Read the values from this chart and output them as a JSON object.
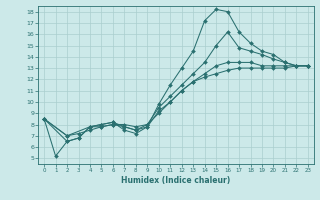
{
  "xlabel": "Humidex (Indice chaleur)",
  "xlim": [
    -0.5,
    23.5
  ],
  "ylim": [
    4.5,
    18.5
  ],
  "xticks": [
    0,
    1,
    2,
    3,
    4,
    5,
    6,
    7,
    8,
    9,
    10,
    11,
    12,
    13,
    14,
    15,
    16,
    17,
    18,
    19,
    20,
    21,
    22,
    23
  ],
  "yticks": [
    5,
    6,
    7,
    8,
    9,
    10,
    11,
    12,
    13,
    14,
    15,
    16,
    17,
    18
  ],
  "bg_color": "#cce9e9",
  "grid_color": "#aacece",
  "line_color": "#2a7070",
  "lines": [
    {
      "x": [
        0,
        1,
        2,
        3,
        4,
        5,
        6,
        7,
        8,
        9,
        10,
        11,
        12,
        13,
        14,
        15,
        16,
        17,
        18,
        19,
        20,
        21,
        22,
        23
      ],
      "y": [
        8.5,
        5.2,
        6.5,
        6.8,
        7.8,
        8.0,
        8.2,
        7.5,
        7.2,
        7.8,
        9.8,
        11.5,
        13.0,
        14.5,
        17.2,
        18.2,
        18.0,
        16.2,
        15.2,
        14.5,
        14.2,
        13.5,
        13.2,
        13.2
      ],
      "marker": "D",
      "markersize": 2.0
    },
    {
      "x": [
        0,
        2,
        3,
        4,
        5,
        6,
        7,
        8,
        9,
        10,
        11,
        12,
        13,
        14,
        15,
        16,
        17,
        18,
        19,
        20,
        21,
        22,
        23
      ],
      "y": [
        8.5,
        6.5,
        6.8,
        7.8,
        8.0,
        8.2,
        7.8,
        7.5,
        8.0,
        9.5,
        10.5,
        11.5,
        12.5,
        13.5,
        15.0,
        16.2,
        14.8,
        14.5,
        14.2,
        13.8,
        13.5,
        13.2,
        13.2
      ],
      "marker": "D",
      "markersize": 2.0
    },
    {
      "x": [
        0,
        2,
        3,
        4,
        5,
        6,
        7,
        8,
        9,
        10,
        11,
        12,
        13,
        14,
        15,
        16,
        17,
        18,
        19,
        20,
        21,
        22,
        23
      ],
      "y": [
        8.5,
        7.0,
        7.2,
        7.5,
        7.8,
        8.0,
        8.0,
        7.8,
        8.0,
        9.0,
        10.0,
        11.0,
        11.8,
        12.5,
        13.2,
        13.5,
        13.5,
        13.5,
        13.2,
        13.2,
        13.2,
        13.2,
        13.2
      ],
      "marker": "D",
      "markersize": 2.0
    },
    {
      "x": [
        0,
        2,
        4,
        5,
        6,
        7,
        8,
        9,
        10,
        11,
        12,
        13,
        14,
        15,
        16,
        17,
        18,
        19,
        20,
        21,
        22,
        23
      ],
      "y": [
        8.5,
        7.0,
        7.8,
        7.8,
        8.0,
        7.8,
        7.5,
        7.8,
        9.2,
        10.0,
        11.0,
        11.8,
        12.2,
        12.5,
        12.8,
        13.0,
        13.0,
        13.0,
        13.0,
        13.0,
        13.2,
        13.2
      ],
      "marker": "D",
      "markersize": 2.0
    }
  ]
}
